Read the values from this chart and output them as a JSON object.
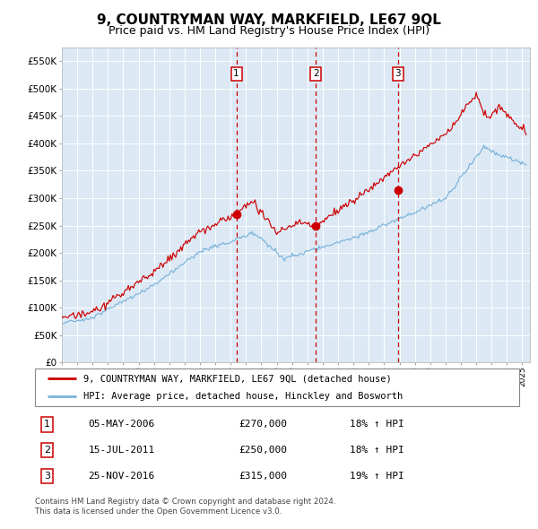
{
  "title": "9, COUNTRYMAN WAY, MARKFIELD, LE67 9QL",
  "subtitle": "Price paid vs. HM Land Registry's House Price Index (HPI)",
  "red_label": "9, COUNTRYMAN WAY, MARKFIELD, LE67 9QL (detached house)",
  "blue_label": "HPI: Average price, detached house, Hinckley and Bosworth",
  "footer1": "Contains HM Land Registry data © Crown copyright and database right 2024.",
  "footer2": "This data is licensed under the Open Government Licence v3.0.",
  "transactions": [
    {
      "num": 1,
      "date": "05-MAY-2006",
      "price": 270000,
      "hpi_pct": "18%",
      "x_year": 2006.37
    },
    {
      "num": 2,
      "date": "15-JUL-2011",
      "price": 250000,
      "hpi_pct": "18%",
      "x_year": 2011.54
    },
    {
      "num": 3,
      "date": "25-NOV-2016",
      "price": 315000,
      "hpi_pct": "19%",
      "x_year": 2016.9
    }
  ],
  "ylim": [
    0,
    575000
  ],
  "xlim_start": 1995.0,
  "xlim_end": 2025.5,
  "bg_color": "#dce9f5",
  "red_color": "#cc0000",
  "blue_color": "#7ab3d9",
  "grid_color": "#ffffff",
  "dashed_color": "#cc0000",
  "title_fontsize": 11,
  "subtitle_fontsize": 9
}
